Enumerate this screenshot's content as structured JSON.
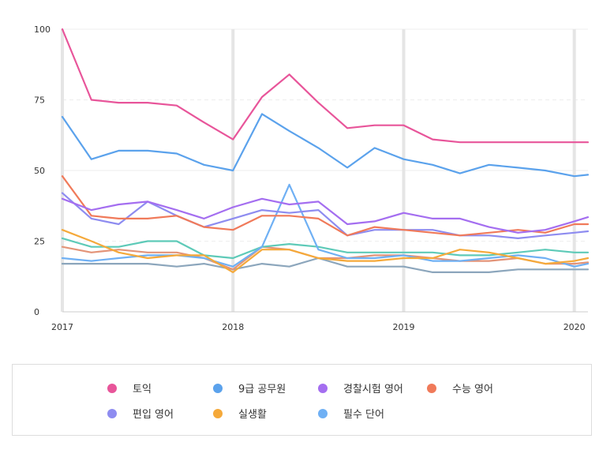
{
  "chart_data": {
    "type": "line",
    "title": "",
    "xlabel": "",
    "ylabel": "",
    "xlim": [
      2017,
      2020.08
    ],
    "ylim": [
      0,
      100
    ],
    "y_ticks": [
      "0",
      "25",
      "50",
      "75",
      "100"
    ],
    "x_ticks": [
      "2017",
      "2018",
      "2019",
      "2020"
    ],
    "x_tick_values": [
      2017,
      2018,
      2019,
      2020
    ],
    "grid": true,
    "legend_position": "bottom",
    "x": [
      2017.0,
      2017.17,
      2017.33,
      2017.5,
      2017.67,
      2017.83,
      2018.0,
      2018.17,
      2018.33,
      2018.5,
      2018.67,
      2018.83,
      2019.0,
      2019.17,
      2019.33,
      2019.5,
      2019.67,
      2019.83,
      2020.0,
      2020.08
    ],
    "series": [
      {
        "name": "토익",
        "color": "#e8559a",
        "values": [
          100,
          75,
          74,
          74,
          73,
          67,
          61,
          76,
          84,
          74,
          65,
          66,
          66,
          61,
          60,
          60,
          60,
          60,
          60,
          60
        ]
      },
      {
        "name": "9급 공무원",
        "color": "#5ba2ec",
        "values": [
          69,
          54,
          57,
          57,
          56,
          52,
          50,
          70,
          64,
          58,
          51,
          58,
          54,
          52,
          49,
          52,
          51,
          50,
          48,
          48.5
        ]
      },
      {
        "name": "경찰시험 영어",
        "color": "#a46ef0",
        "values": [
          40,
          36,
          38,
          39,
          36,
          33,
          37,
          40,
          38,
          39,
          31,
          32,
          35,
          33,
          33,
          30,
          28,
          29,
          32,
          33.5
        ]
      },
      {
        "name": "수능 영어",
        "color": "#f07a5a",
        "values": [
          48,
          34,
          33,
          33,
          34,
          30,
          29,
          34,
          34,
          33,
          27,
          30,
          29,
          28,
          27,
          28,
          29,
          28,
          31,
          31
        ]
      },
      {
        "name": "편입 영어",
        "color": "#8e8cf0",
        "values": [
          42,
          33,
          31,
          39,
          34,
          30,
          33,
          36,
          35,
          36,
          27,
          29,
          29,
          29,
          27,
          27,
          26,
          27,
          28,
          28.5
        ]
      },
      {
        "name": "실생활",
        "color": "#f5a93a",
        "values": [
          29,
          25,
          21,
          19,
          20,
          20,
          14,
          22,
          22,
          19,
          18,
          18,
          19,
          19,
          22,
          21,
          19,
          17,
          18,
          19
        ]
      },
      {
        "name": "필수 단어",
        "color": "#6fb0f4",
        "values": [
          19,
          18,
          19,
          20,
          20,
          19,
          16,
          23,
          45,
          22,
          19,
          19,
          20,
          18,
          18,
          19,
          20,
          19,
          16,
          17
        ]
      },
      {
        "name": "",
        "color": "#5ecab8",
        "values": [
          26,
          23,
          23,
          25,
          25,
          20,
          19,
          23,
          24,
          23,
          21,
          21,
          21,
          21,
          20,
          20,
          21,
          22,
          21,
          21
        ]
      },
      {
        "name": "",
        "color": "#e39478",
        "values": [
          23,
          21,
          22,
          21,
          21,
          19,
          15,
          23,
          22,
          19,
          19,
          20,
          20,
          19,
          18,
          18,
          19,
          17,
          17,
          17.5
        ]
      },
      {
        "name": "",
        "color": "#8ca6bc",
        "values": [
          17,
          17,
          17,
          17,
          16,
          17,
          15,
          17,
          16,
          19,
          16,
          16,
          16,
          14,
          14,
          14,
          15,
          15,
          15,
          15
        ]
      }
    ]
  },
  "legend": {
    "items": [
      {
        "label": "토익",
        "color": "#e8559a"
      },
      {
        "label": "9급 공무원",
        "color": "#5ba2ec"
      },
      {
        "label": "경찰시험 영어",
        "color": "#a46ef0"
      },
      {
        "label": "수능 영어",
        "color": "#f07a5a"
      },
      {
        "label": "편입 영어",
        "color": "#8e8cf0"
      },
      {
        "label": "실생활",
        "color": "#f5a93a"
      },
      {
        "label": "필수 단어",
        "color": "#6fb0f4"
      }
    ]
  }
}
